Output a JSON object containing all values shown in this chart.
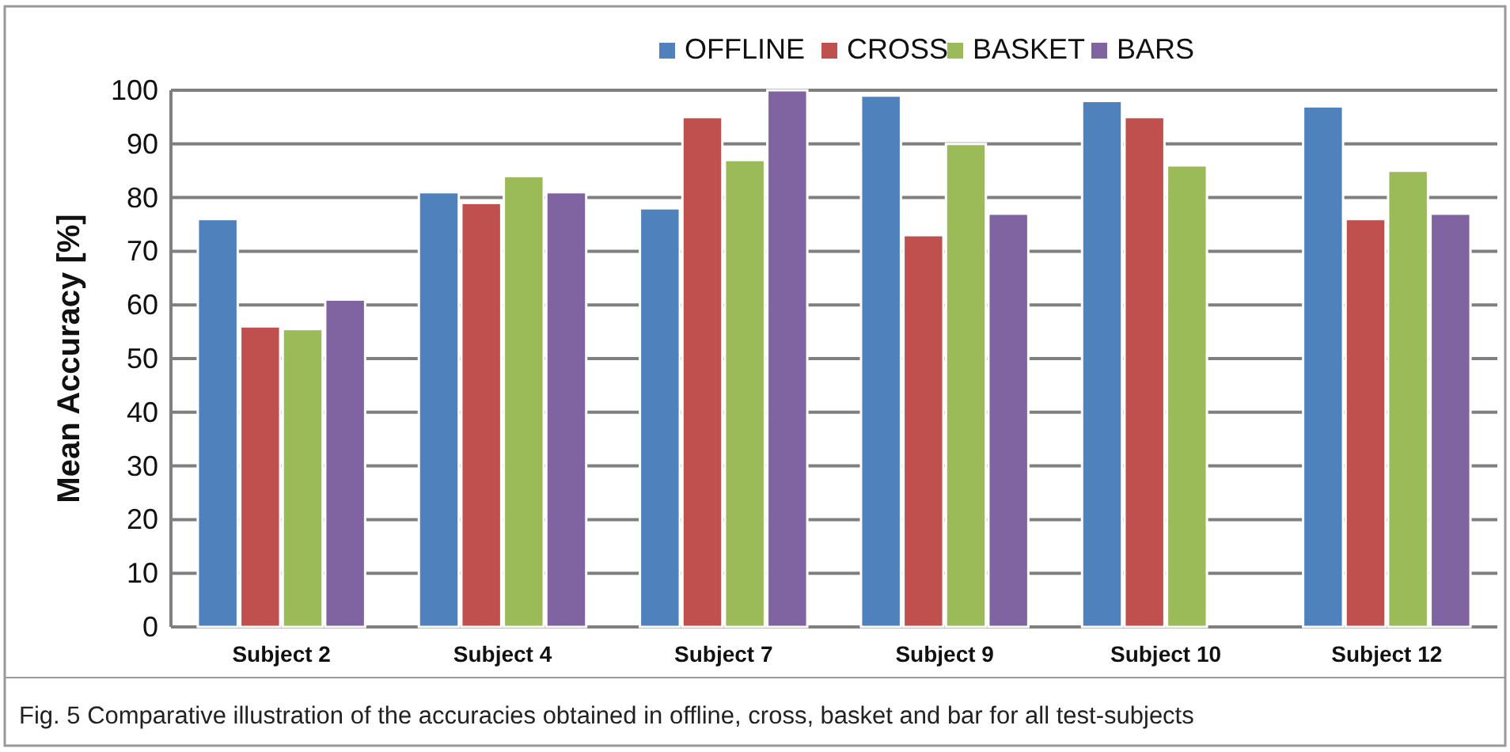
{
  "chart_data": {
    "type": "bar",
    "ylabel": "Mean Accuracy [%]",
    "categories": [
      "Subject 2",
      "Subject 4",
      "Subject 7",
      "Subject 9",
      "Subject 10",
      "Subject 12"
    ],
    "series": [
      {
        "name": "OFFLINE",
        "color": "#4f81bd",
        "values": [
          76,
          81,
          78,
          99,
          98,
          97
        ]
      },
      {
        "name": "CROSS",
        "color": "#c0504d",
        "values": [
          56,
          79,
          95,
          73,
          95,
          76
        ]
      },
      {
        "name": "BASKET",
        "color": "#9bbb59",
        "values": [
          55.5,
          84,
          87,
          90,
          86,
          85
        ]
      },
      {
        "name": "BARS",
        "color": "#8064a2",
        "values": [
          61,
          81,
          100,
          77,
          null,
          77
        ]
      }
    ],
    "ylim": [
      0,
      100
    ],
    "yticks": [
      0,
      10,
      20,
      30,
      40,
      50,
      60,
      70,
      80,
      90,
      100
    ],
    "grid": "y",
    "legend": "top",
    "annotations": [
      "Fig. 5  Comparative illustration of the accuracies obtained in offline, cross, basket and bar for all test-subjects"
    ]
  }
}
